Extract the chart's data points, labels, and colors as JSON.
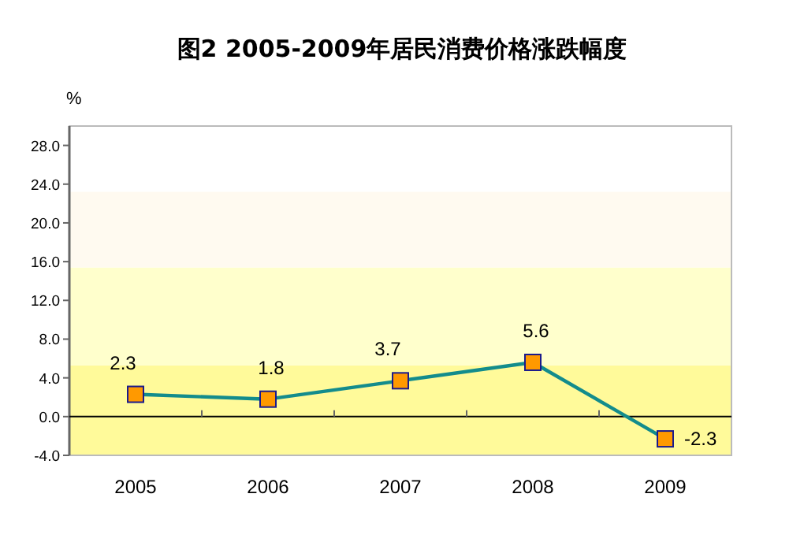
{
  "chart_data": {
    "type": "line",
    "title": "图2 2005-2009年居民消费价格涨跌幅度",
    "ylabel": "%",
    "categories": [
      "2005",
      "2006",
      "2007",
      "2008",
      "2009"
    ],
    "series": [
      {
        "color": "#138c8c",
        "values": [
          2.3,
          1.8,
          3.7,
          5.6,
          -2.3
        ]
      }
    ],
    "ylim": [
      -4,
      30
    ],
    "yticks": [
      {
        "value": -4,
        "label": "-4.0"
      },
      {
        "value": 0,
        "label": "0.0"
      },
      {
        "value": 4,
        "label": "4.0"
      },
      {
        "value": 8,
        "label": "8.0"
      },
      {
        "value": 12,
        "label": "12.0"
      },
      {
        "value": 16,
        "label": "16.0"
      },
      {
        "value": 20,
        "label": "20.0"
      },
      {
        "value": 24,
        "label": "24.0"
      },
      {
        "value": 28,
        "label": "28.0"
      }
    ],
    "bands": [
      {
        "axis": "y",
        "from": -4,
        "to": 5.3,
        "color": "#fffa9a"
      },
      {
        "axis": "y",
        "from": 5.3,
        "to": 15.4,
        "color": "#ffffcc"
      },
      {
        "axis": "y",
        "from": 15.4,
        "to": 23.2,
        "color": "#fffaf0"
      }
    ],
    "ref_lines": [
      {
        "axis": "y",
        "value": 0,
        "color": "#000000"
      }
    ],
    "marker": "square",
    "data_labels": true
  }
}
